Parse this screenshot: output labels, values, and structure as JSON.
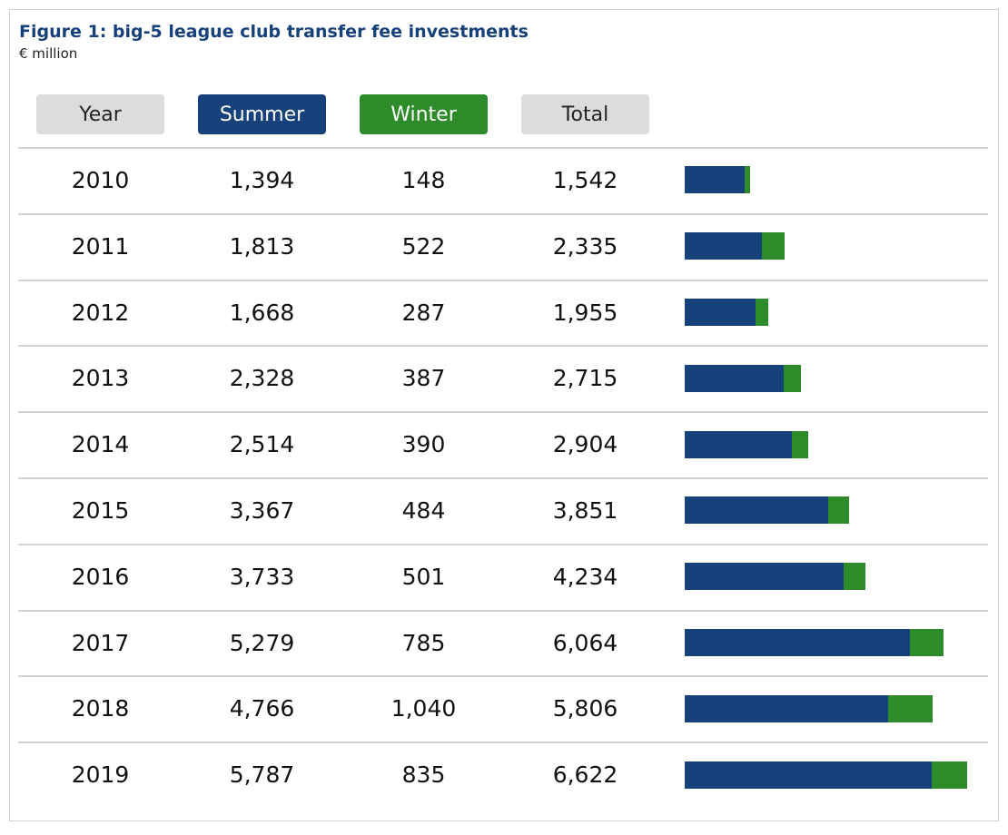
{
  "header": {
    "title": "Figure 1: big-5 league club transfer fee investments",
    "subtitle": "€ million"
  },
  "columns": {
    "year": "Year",
    "summer": "Summer",
    "winter": "Winter",
    "total": "Total"
  },
  "colors": {
    "summer": "#17417a",
    "winter": "#2e8b2a",
    "header_gray": "#dcdcdc"
  },
  "chart_data": {
    "type": "bar",
    "stacked": true,
    "orientation": "horizontal",
    "categories": [
      "2010",
      "2011",
      "2012",
      "2013",
      "2014",
      "2015",
      "2016",
      "2017",
      "2018",
      "2019"
    ],
    "series": [
      {
        "name": "Summer",
        "values": [
          1394,
          1813,
          1668,
          2328,
          2514,
          3367,
          3733,
          5279,
          4766,
          5787
        ]
      },
      {
        "name": "Winter",
        "values": [
          148,
          522,
          287,
          387,
          390,
          484,
          501,
          785,
          1040,
          835
        ]
      }
    ],
    "totals": [
      1542,
      2335,
      1955,
      2715,
      2904,
      3851,
      4234,
      6064,
      5806,
      6622
    ],
    "labels": {
      "summer": [
        "1,394",
        "1,813",
        "1,668",
        "2,328",
        "2,514",
        "3,367",
        "3,733",
        "5,279",
        "4,766",
        "5,787"
      ],
      "winter": [
        "148",
        "522",
        "287",
        "387",
        "390",
        "484",
        "501",
        "785",
        "1,040",
        "835"
      ],
      "total": [
        "1,542",
        "2,335",
        "1,955",
        "2,715",
        "2,904",
        "3,851",
        "4,234",
        "6,064",
        "5,806",
        "6,622"
      ]
    }
  }
}
